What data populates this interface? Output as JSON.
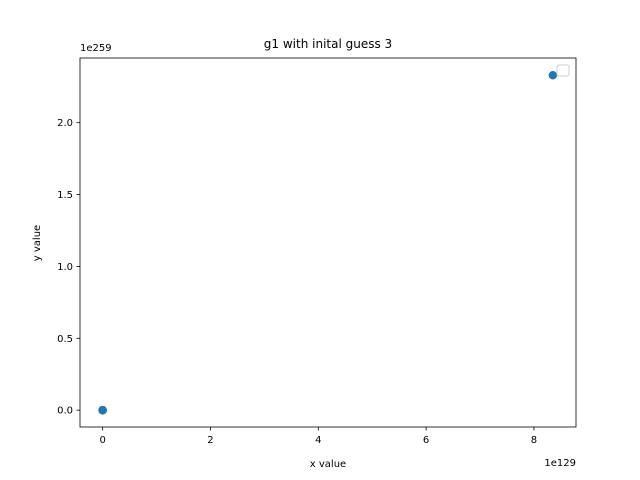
{
  "chart_data": {
    "type": "scatter",
    "title": "g1 with inital guess 3",
    "xlabel": "x value",
    "ylabel": "y value",
    "x_offset_text": "1e129",
    "y_offset_text": "1e259",
    "x_ticks": [
      0,
      2,
      4,
      6,
      8
    ],
    "x_tick_labels": [
      "0",
      "2",
      "4",
      "6",
      "8"
    ],
    "y_ticks": [
      0.0,
      0.5,
      1.0,
      1.5,
      2.0
    ],
    "y_tick_labels": [
      "0.0",
      "0.5",
      "1.0",
      "1.5",
      "2.0"
    ],
    "xlim": [
      -0.42,
      8.78
    ],
    "ylim": [
      -0.117,
      2.45
    ],
    "grid": false,
    "legend": "upper right, empty",
    "series": [
      {
        "color": "#1f77b4",
        "x": [
          0,
          0,
          0,
          0,
          0,
          0,
          0,
          8.35
        ],
        "y": [
          0,
          0,
          0,
          0,
          0,
          0,
          0,
          2.33
        ]
      }
    ]
  }
}
